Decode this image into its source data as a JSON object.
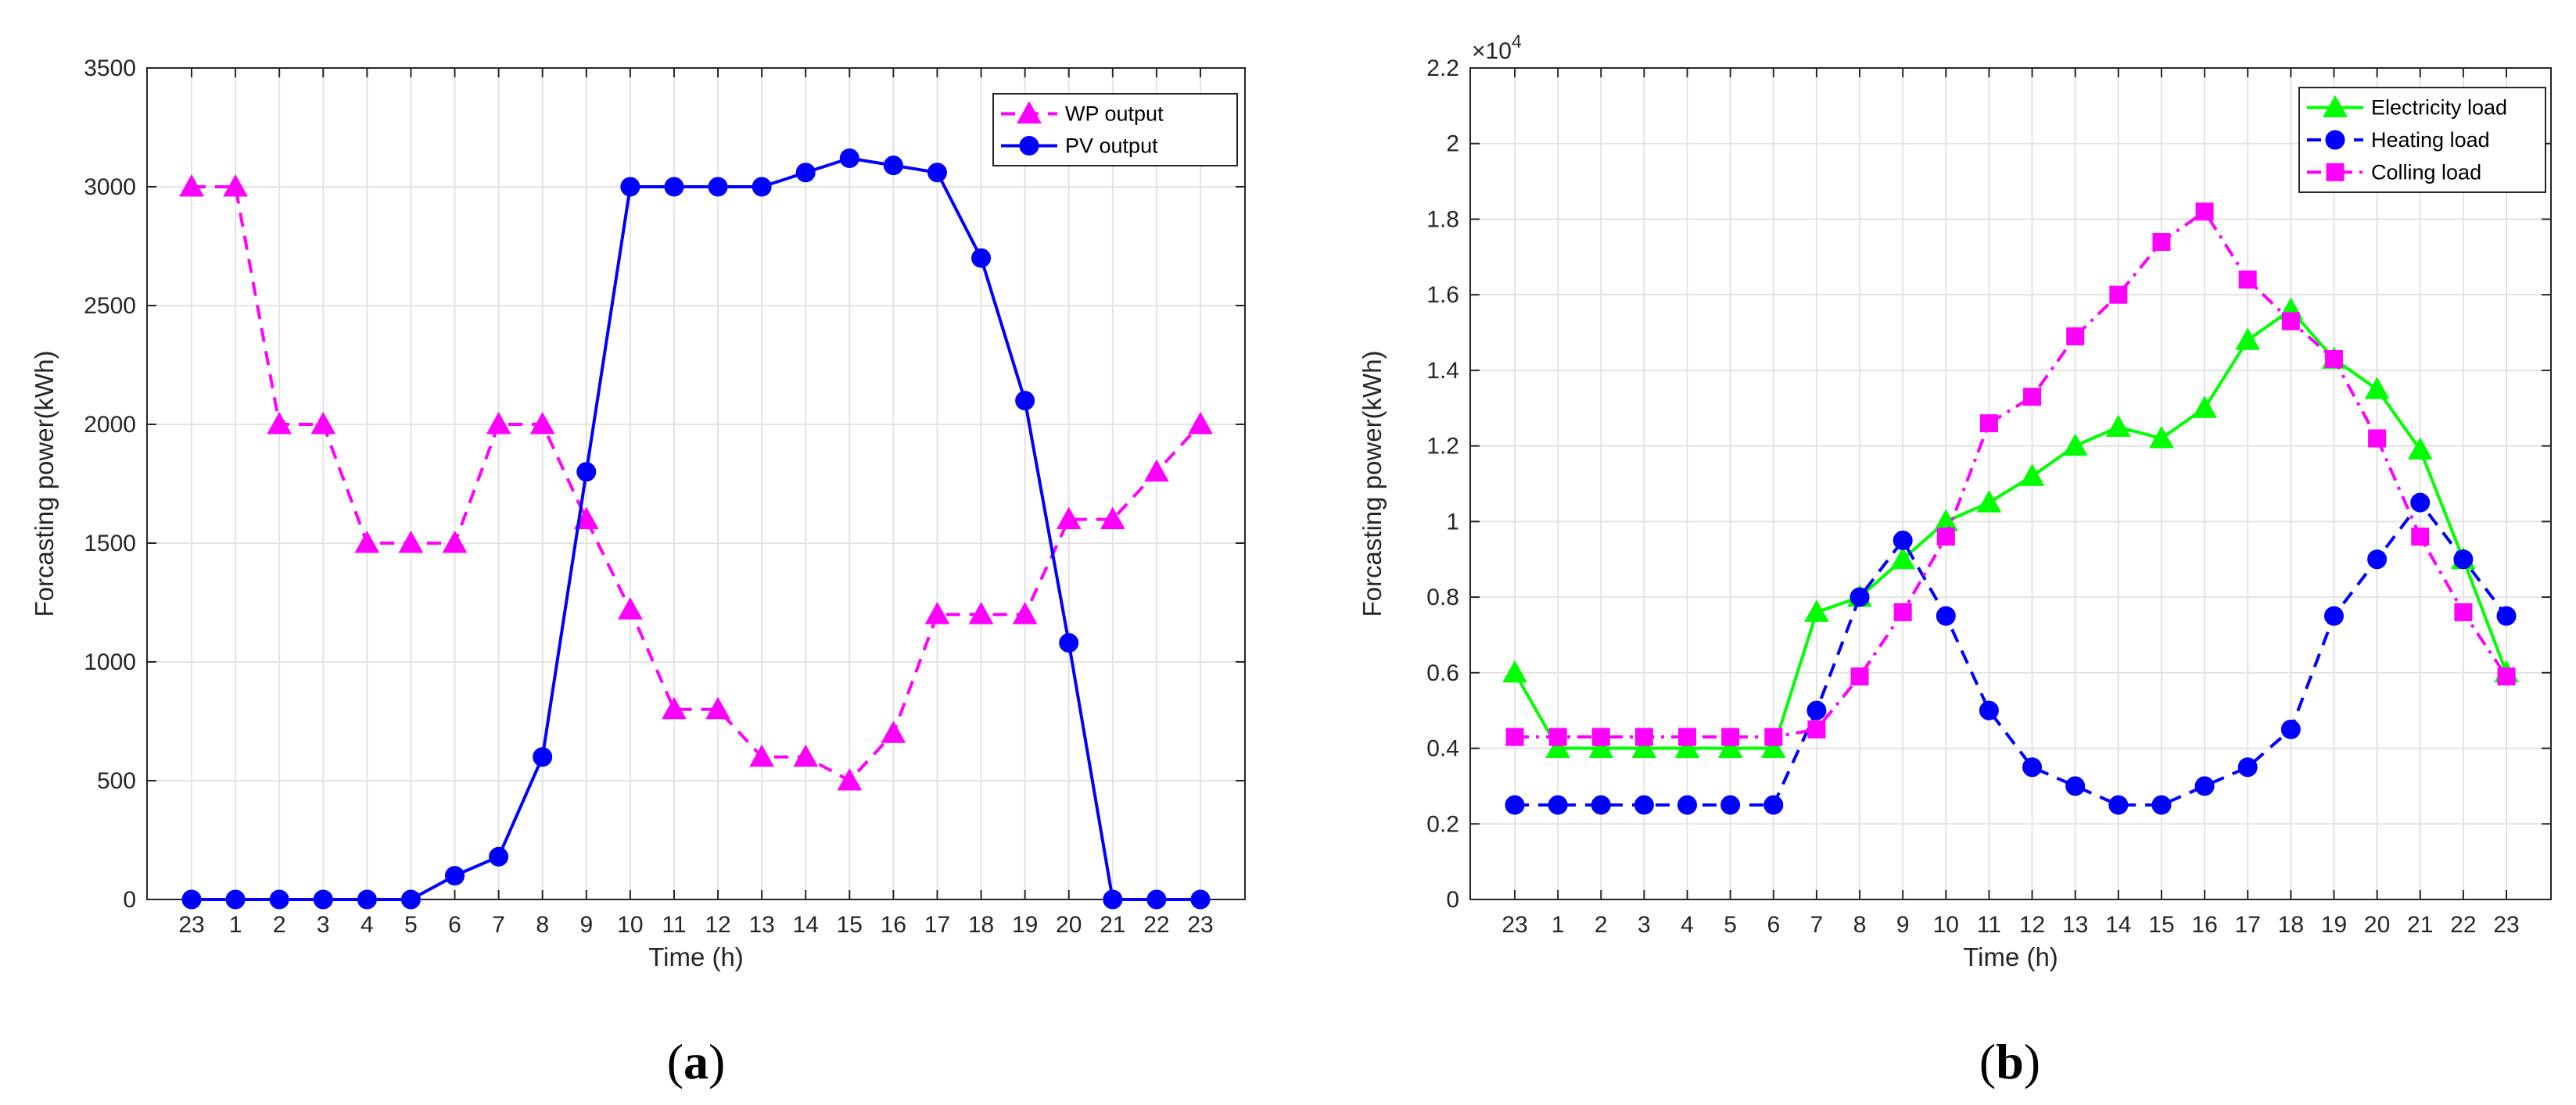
{
  "chart_data": [
    {
      "type": "line",
      "panel": "a",
      "caption_letter": "a",
      "xlabel": "Time (h)",
      "ylabel": "Forcasting power(kWh)",
      "x_tick_labels": [
        "23",
        "1",
        "2",
        "3",
        "4",
        "5",
        "6",
        "7",
        "8",
        "9",
        "10",
        "11",
        "12",
        "13",
        "14",
        "15",
        "16",
        "17",
        "18",
        "19",
        "20",
        "21",
        "22",
        "23"
      ],
      "ylim": [
        0,
        3500
      ],
      "y_ticks": [
        0,
        500,
        1000,
        1500,
        2000,
        2500,
        3000,
        3500
      ],
      "y_tick_labels": [
        "0",
        "500",
        "1000",
        "1500",
        "2000",
        "2500",
        "3000",
        "3500"
      ],
      "grid": true,
      "legend_position": "top-right",
      "series": [
        {
          "name": "WP output",
          "color": "#ff00ff",
          "dash": "dashed",
          "marker": "triangle",
          "values": [
            3000,
            3000,
            2000,
            2000,
            1500,
            1500,
            1500,
            2000,
            2000,
            1600,
            1220,
            800,
            800,
            600,
            600,
            500,
            700,
            1200,
            1200,
            1200,
            1600,
            1600,
            1800,
            2000
          ]
        },
        {
          "name": "PV output",
          "color": "#0000ff",
          "dash": "solid",
          "marker": "circle",
          "values": [
            0,
            0,
            0,
            0,
            0,
            0,
            100,
            180,
            600,
            1800,
            3000,
            3000,
            3000,
            3000,
            3060,
            3120,
            3090,
            3060,
            2700,
            2100,
            1080,
            0,
            0,
            0
          ]
        }
      ]
    },
    {
      "type": "line",
      "panel": "b",
      "caption_letter": "b",
      "xlabel": "Time (h)",
      "ylabel": "Forcasting power(kWh)",
      "exponent_label": "×10",
      "exponent_power": "4",
      "x_tick_labels": [
        "23",
        "1",
        "2",
        "3",
        "4",
        "5",
        "6",
        "7",
        "8",
        "9",
        "10",
        "11",
        "12",
        "13",
        "14",
        "15",
        "16",
        "17",
        "18",
        "19",
        "20",
        "21",
        "22",
        "23"
      ],
      "ylim": [
        0,
        2.2
      ],
      "y_ticks": [
        0,
        0.2,
        0.4,
        0.6,
        0.8,
        1,
        1.2,
        1.4,
        1.6,
        1.8,
        2,
        2.2
      ],
      "y_tick_labels": [
        "0",
        "0.2",
        "0.4",
        "0.6",
        "0.8",
        "1",
        "1.2",
        "1.4",
        "1.6",
        "1.8",
        "2",
        "2.2"
      ],
      "grid": true,
      "legend_position": "top-right",
      "series": [
        {
          "name": "Electricity load",
          "color": "#00ff00",
          "dash": "solid",
          "marker": "triangle",
          "values": [
            0.6,
            0.4,
            0.4,
            0.4,
            0.4,
            0.4,
            0.4,
            0.76,
            0.8,
            0.9,
            1.0,
            1.05,
            1.12,
            1.2,
            1.25,
            1.22,
            1.3,
            1.48,
            1.56,
            1.43,
            1.35,
            1.19,
            0.9,
            0.6
          ]
        },
        {
          "name": "Heating load",
          "color": "#0000ff",
          "dash": "dashed",
          "marker": "circle",
          "values": [
            0.25,
            0.25,
            0.25,
            0.25,
            0.25,
            0.25,
            0.25,
            0.5,
            0.8,
            0.95,
            0.75,
            0.5,
            0.35,
            0.3,
            0.25,
            0.25,
            0.3,
            0.35,
            0.45,
            0.75,
            0.9,
            1.05,
            0.9,
            0.75
          ]
        },
        {
          "name": "Colling load",
          "color": "#ff00ff",
          "dash": "dashdot",
          "marker": "square",
          "values": [
            0.43,
            0.43,
            0.43,
            0.43,
            0.43,
            0.43,
            0.43,
            0.45,
            0.59,
            0.76,
            0.96,
            1.26,
            1.33,
            1.49,
            1.6,
            1.74,
            1.82,
            1.64,
            1.53,
            1.43,
            1.22,
            0.96,
            0.76,
            0.59
          ]
        }
      ]
    }
  ]
}
